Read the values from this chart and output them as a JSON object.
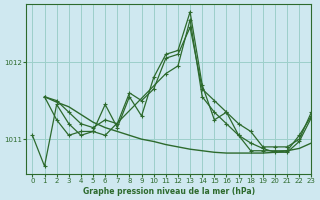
{
  "title": "Graphe pression niveau de la mer (hPa)",
  "background_color": "#cfe8f0",
  "grid_color": "#9dcfca",
  "line_color": "#2d6a2d",
  "ylim": [
    1010.55,
    1012.75
  ],
  "xlim": [
    -0.5,
    23
  ],
  "yticks": [
    1011,
    1012
  ],
  "xticks": [
    0,
    1,
    2,
    3,
    4,
    5,
    6,
    7,
    8,
    9,
    10,
    11,
    12,
    13,
    14,
    15,
    16,
    17,
    18,
    19,
    20,
    21,
    22,
    23
  ],
  "series": [
    {
      "x": [
        0,
        1,
        2,
        3,
        4,
        5,
        6,
        7,
        8,
        9,
        10,
        11,
        12,
        13,
        14,
        15,
        16,
        17,
        18,
        19,
        20,
        21,
        22,
        23
      ],
      "y": [
        1011.05,
        1010.65,
        1011.45,
        1011.2,
        1011.05,
        1011.1,
        1011.45,
        1011.15,
        1011.55,
        1011.3,
        1011.8,
        1012.1,
        1012.15,
        1012.65,
        1011.7,
        1011.25,
        1011.35,
        1011.05,
        1010.85,
        1010.85,
        1010.85,
        1010.85,
        1011.05,
        1011.3
      ],
      "marker": "+",
      "lw": 0.9
    },
    {
      "x": [
        1,
        2,
        3,
        4,
        5,
        6,
        7,
        8,
        9,
        10,
        11,
        12,
        13,
        14,
        15,
        16,
        17,
        18,
        19,
        20,
        21,
        22,
        23
      ],
      "y": [
        1011.55,
        1011.5,
        1011.35,
        1011.2,
        1011.15,
        1011.25,
        1011.2,
        1011.6,
        1011.5,
        1011.65,
        1012.05,
        1012.1,
        1012.45,
        1011.65,
        1011.5,
        1011.35,
        1011.2,
        1011.1,
        1010.9,
        1010.9,
        1010.9,
        1011.0,
        1011.35
      ],
      "marker": "+",
      "lw": 0.9
    },
    {
      "x": [
        1,
        2,
        3,
        4,
        5,
        6,
        11,
        12,
        13,
        14,
        15,
        16,
        17,
        18,
        19,
        20,
        21,
        22,
        23
      ],
      "y": [
        1011.55,
        1011.25,
        1011.05,
        1011.1,
        1011.1,
        1011.05,
        1011.85,
        1011.95,
        1012.55,
        1011.55,
        1011.35,
        1011.2,
        1011.05,
        1010.95,
        1010.88,
        1010.83,
        1010.83,
        1010.97,
        1011.28
      ],
      "marker": "+",
      "lw": 0.9
    },
    {
      "x": [
        1,
        2,
        3,
        4,
        5,
        6,
        7,
        8,
        9,
        10,
        11,
        12,
        13,
        14,
        15,
        16,
        17,
        18,
        19,
        20,
        21,
        22,
        23
      ],
      "y": [
        1011.55,
        1011.48,
        1011.42,
        1011.32,
        1011.22,
        1011.15,
        1011.1,
        1011.05,
        1011.0,
        1010.97,
        1010.93,
        1010.9,
        1010.87,
        1010.85,
        1010.83,
        1010.82,
        1010.82,
        1010.82,
        1010.82,
        1010.83,
        1010.85,
        1010.88,
        1010.95
      ],
      "marker": null,
      "lw": 1.0
    }
  ]
}
